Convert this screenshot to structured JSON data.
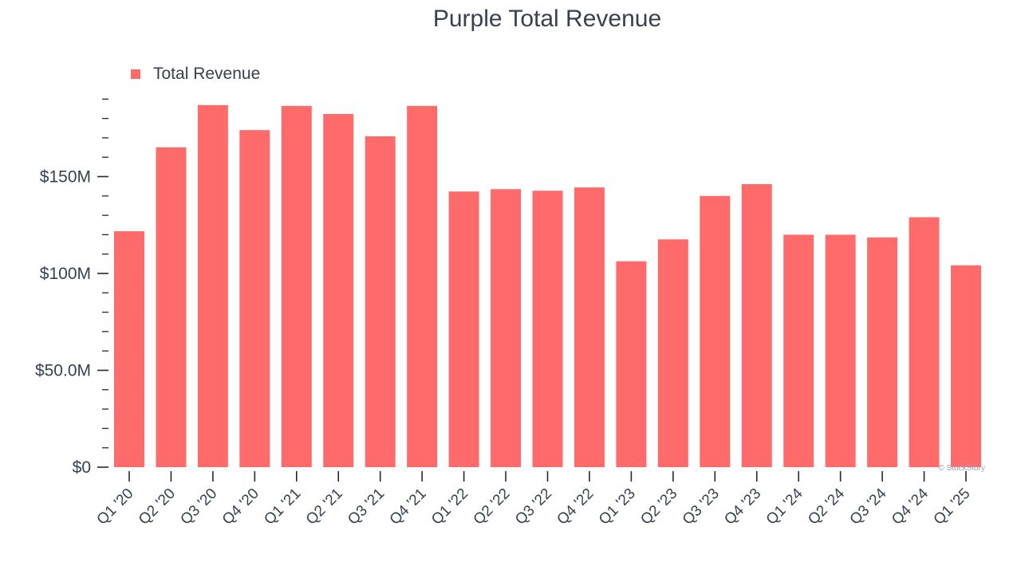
{
  "chart_data": {
    "type": "bar",
    "title": "Purple Total Revenue",
    "series_name": "Total Revenue",
    "categories": [
      "Q1 '20",
      "Q2 '20",
      "Q3 '20",
      "Q4 '20",
      "Q1 '21",
      "Q2 '21",
      "Q3 '21",
      "Q4 '21",
      "Q1 '22",
      "Q2 '22",
      "Q3 '22",
      "Q4 '22",
      "Q1 '23",
      "Q2 '23",
      "Q3 '23",
      "Q4 '23",
      "Q1 '24",
      "Q2 '24",
      "Q3 '24",
      "Q4 '24",
      "Q1 '25"
    ],
    "values": [
      121.8,
      165.1,
      186.9,
      174.0,
      186.5,
      182.3,
      170.8,
      186.5,
      142.3,
      143.5,
      142.7,
      144.4,
      106.3,
      117.6,
      140.0,
      146.1,
      120.0,
      120.0,
      118.6,
      129.0,
      104.2
    ],
    "value_unit": "$M",
    "ylim": [
      0,
      190
    ],
    "yticks": [
      0,
      50,
      100,
      150
    ],
    "ytick_labels": [
      "$0",
      "$50.0M",
      "$100M",
      "$150M"
    ],
    "minor_tick_step": 10,
    "xlabel": "",
    "ylabel": "",
    "legend_position": "top-left",
    "grid": false
  },
  "watermark": "© StockStory",
  "colors": {
    "bar": "#ff6b6b",
    "text": "#374151",
    "axis": "#1f2937",
    "watermark": "#9ca3af"
  }
}
